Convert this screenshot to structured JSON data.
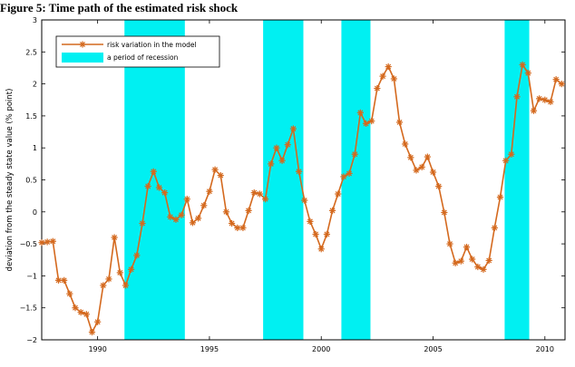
{
  "chart_data": {
    "type": "line",
    "title": "Figure 5: Time path of the estimated risk shock",
    "xlabel": "",
    "ylabel": "deviation from the steady state value (% point)",
    "xlim": [
      1987.5,
      2010.9
    ],
    "ylim": [
      -2,
      3
    ],
    "xticks": [
      1990,
      1995,
      2000,
      2005,
      2010
    ],
    "yticks": [
      3,
      2.5,
      2,
      1.5,
      1,
      0.5,
      0,
      -0.5,
      -1,
      -1.5,
      -2
    ],
    "legend_position": "top-left",
    "grid": false,
    "series": [
      {
        "name": "risk variation in the model",
        "color": "#d4691e",
        "marker": "asterisk",
        "x": [
          1987.5,
          1987.75,
          1988.0,
          1988.25,
          1988.5,
          1988.75,
          1989.0,
          1989.25,
          1989.5,
          1989.75,
          1990.0,
          1990.25,
          1990.5,
          1990.75,
          1991.0,
          1991.25,
          1991.5,
          1991.75,
          1992.0,
          1992.25,
          1992.5,
          1992.75,
          1993.0,
          1993.25,
          1993.5,
          1993.75,
          1994.0,
          1994.25,
          1994.5,
          1994.75,
          1995.0,
          1995.25,
          1995.5,
          1995.75,
          1996.0,
          1996.25,
          1996.5,
          1996.75,
          1997.0,
          1997.25,
          1997.5,
          1997.75,
          1998.0,
          1998.25,
          1998.5,
          1998.75,
          1999.0,
          1999.25,
          1999.5,
          1999.75,
          2000.0,
          2000.25,
          2000.5,
          2000.75,
          2001.0,
          2001.25,
          2001.5,
          2001.75,
          2002.0,
          2002.25,
          2002.5,
          2002.75,
          2003.0,
          2003.25,
          2003.5,
          2003.75,
          2004.0,
          2004.25,
          2004.5,
          2004.75,
          2005.0,
          2005.25,
          2005.5,
          2005.75,
          2006.0,
          2006.25,
          2006.5,
          2006.75,
          2007.0,
          2007.25,
          2007.5,
          2007.75,
          2008.0,
          2008.25,
          2008.5,
          2008.75,
          2009.0,
          2009.25,
          2009.5,
          2009.75,
          2010.0,
          2010.25,
          2010.5,
          2010.75
        ],
        "y": [
          -0.48,
          -0.47,
          -0.46,
          -1.07,
          -1.07,
          -1.28,
          -1.5,
          -1.57,
          -1.6,
          -1.88,
          -1.72,
          -1.15,
          -1.05,
          -0.4,
          -0.95,
          -1.15,
          -0.9,
          -0.68,
          -0.18,
          0.4,
          0.63,
          0.38,
          0.3,
          -0.08,
          -0.12,
          -0.05,
          0.2,
          -0.17,
          -0.1,
          0.1,
          0.32,
          0.66,
          0.57,
          0.0,
          -0.18,
          -0.25,
          -0.25,
          0.02,
          0.3,
          0.28,
          0.2,
          0.75,
          1.0,
          0.8,
          1.05,
          1.3,
          0.63,
          0.18,
          -0.15,
          -0.35,
          -0.58,
          -0.35,
          0.02,
          0.28,
          0.55,
          0.6,
          0.9,
          1.55,
          1.38,
          1.42,
          1.93,
          2.12,
          2.27,
          2.08,
          1.4,
          1.06,
          0.85,
          0.65,
          0.7,
          0.86,
          0.62,
          0.4,
          -0.01,
          -0.5,
          -0.8,
          -0.77,
          -0.55,
          -0.74,
          -0.86,
          -0.9,
          -0.76,
          -0.25,
          0.23,
          0.8,
          0.9,
          1.8,
          2.3,
          2.17,
          1.58,
          1.77,
          1.75,
          1.72,
          2.07,
          2.0
        ]
      }
    ],
    "recessions": {
      "name": "a period of recession",
      "color": "#00f0f2",
      "periods": [
        [
          1991.2,
          1993.9
        ],
        [
          1997.4,
          1999.2
        ],
        [
          2000.9,
          2002.2
        ],
        [
          2008.2,
          2009.3
        ]
      ]
    }
  }
}
